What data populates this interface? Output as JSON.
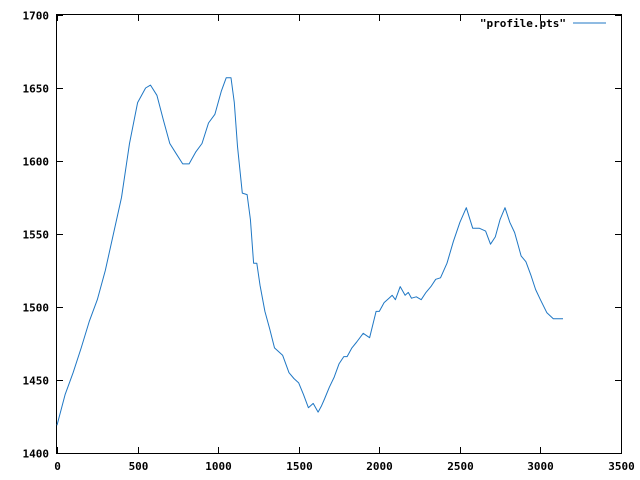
{
  "chart_data": {
    "type": "line",
    "title": "",
    "xlabel": "",
    "ylabel": "",
    "xlim": [
      0,
      3500
    ],
    "ylim": [
      1400,
      1700
    ],
    "x_ticks": [
      0,
      500,
      1000,
      1500,
      2000,
      2500,
      3000,
      3500
    ],
    "y_ticks": [
      1400,
      1450,
      1500,
      1550,
      1600,
      1650,
      1700
    ],
    "grid": false,
    "legend_position": "top-right",
    "series": [
      {
        "name": "\"profile.pts\"",
        "color": "#1f77c4",
        "x": [
          0,
          50,
          100,
          150,
          200,
          250,
          300,
          350,
          400,
          450,
          500,
          550,
          580,
          620,
          660,
          700,
          740,
          780,
          820,
          860,
          900,
          940,
          980,
          1020,
          1050,
          1080,
          1100,
          1120,
          1150,
          1180,
          1200,
          1220,
          1240,
          1260,
          1290,
          1320,
          1350,
          1400,
          1440,
          1470,
          1500,
          1530,
          1560,
          1590,
          1620,
          1640,
          1660,
          1690,
          1720,
          1750,
          1780,
          1800,
          1830,
          1860,
          1900,
          1940,
          1980,
          2000,
          2030,
          2060,
          2080,
          2100,
          2130,
          2160,
          2180,
          2200,
          2230,
          2260,
          2290,
          2320,
          2350,
          2380,
          2420,
          2460,
          2500,
          2540,
          2580,
          2620,
          2660,
          2690,
          2720,
          2750,
          2780,
          2810,
          2840,
          2860,
          2880,
          2910,
          2940,
          2970,
          3000,
          3040,
          3080,
          3110,
          3140
        ],
        "values": [
          1419,
          1440,
          1455,
          1472,
          1490,
          1505,
          1525,
          1550,
          1575,
          1612,
          1640,
          1650,
          1652,
          1645,
          1628,
          1612,
          1605,
          1598,
          1598,
          1606,
          1612,
          1626,
          1632,
          1648,
          1657,
          1657,
          1640,
          1610,
          1578,
          1577,
          1560,
          1530,
          1530,
          1515,
          1497,
          1485,
          1472,
          1467,
          1455,
          1451,
          1448,
          1440,
          1431,
          1434,
          1428,
          1432,
          1437,
          1445,
          1452,
          1461,
          1466,
          1466,
          1472,
          1476,
          1482,
          1479,
          1497,
          1497,
          1503,
          1506,
          1508,
          1505,
          1514,
          1508,
          1510,
          1506,
          1507,
          1505,
          1510,
          1514,
          1519,
          1520,
          1530,
          1545,
          1558,
          1568,
          1554,
          1554,
          1552,
          1543,
          1548,
          1560,
          1568,
          1558,
          1551,
          1543,
          1535,
          1531,
          1522,
          1512,
          1505,
          1496,
          1492,
          1492,
          1492
        ]
      }
    ]
  }
}
